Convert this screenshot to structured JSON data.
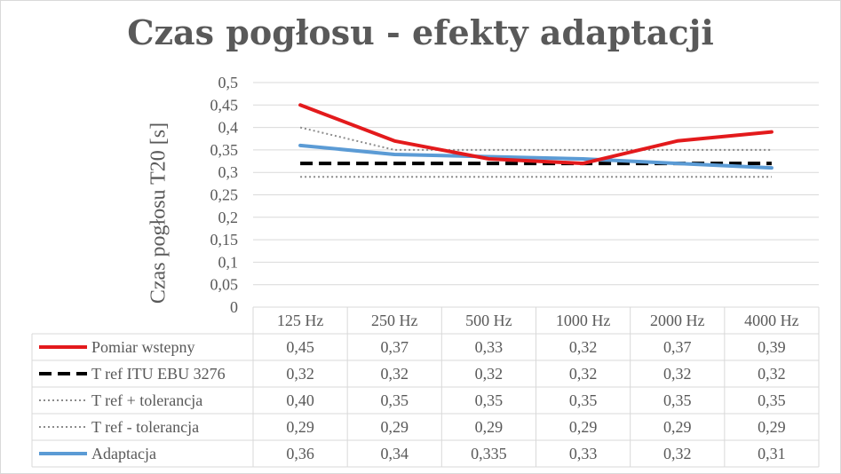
{
  "chart_data": {
    "type": "line",
    "title": "Czas pogłosu - efekty adaptacji",
    "ylabel": "Czas pogłosu T20 [s]",
    "xlabel": "",
    "categories": [
      "125 Hz",
      "250 Hz",
      "500 Hz",
      "1000 Hz",
      "2000 Hz",
      "4000 Hz"
    ],
    "ylim": [
      0,
      0.5
    ],
    "yticks": [
      "0",
      "0,05",
      "0,1",
      "0,15",
      "0,2",
      "0,25",
      "0,3",
      "0,35",
      "0,4",
      "0,45",
      "0,5"
    ],
    "grid": true,
    "legend": "data-table",
    "series": [
      {
        "name": "Pomiar wstepny",
        "values": [
          0.45,
          0.37,
          0.33,
          0.32,
          0.37,
          0.39
        ],
        "labels": [
          "0,45",
          "0,37",
          "0,33",
          "0,32",
          "0,37",
          "0,39"
        ],
        "color": "#e31a1c",
        "style": "solid"
      },
      {
        "name": "T ref ITU EBU 3276",
        "values": [
          0.32,
          0.32,
          0.32,
          0.32,
          0.32,
          0.32
        ],
        "labels": [
          "0,32",
          "0,32",
          "0,32",
          "0,32",
          "0,32",
          "0,32"
        ],
        "color": "#000000",
        "style": "dashed"
      },
      {
        "name": "T ref + tolerancja",
        "values": [
          0.4,
          0.35,
          0.35,
          0.35,
          0.35,
          0.35
        ],
        "labels": [
          "0,40",
          "0,35",
          "0,35",
          "0,35",
          "0,35",
          "0,35"
        ],
        "color": "#8c8c8c",
        "style": "dotted"
      },
      {
        "name": "T ref - tolerancja",
        "values": [
          0.29,
          0.29,
          0.29,
          0.29,
          0.29,
          0.29
        ],
        "labels": [
          "0,29",
          "0,29",
          "0,29",
          "0,29",
          "0,29",
          "0,29"
        ],
        "color": "#8c8c8c",
        "style": "dotted"
      },
      {
        "name": "Adaptacja",
        "values": [
          0.36,
          0.34,
          0.335,
          0.33,
          0.32,
          0.31
        ],
        "labels": [
          "0,36",
          "0,34",
          "0,335",
          "0,33",
          "0,32",
          "0,31"
        ],
        "color": "#5b9bd5",
        "style": "solid"
      }
    ]
  }
}
